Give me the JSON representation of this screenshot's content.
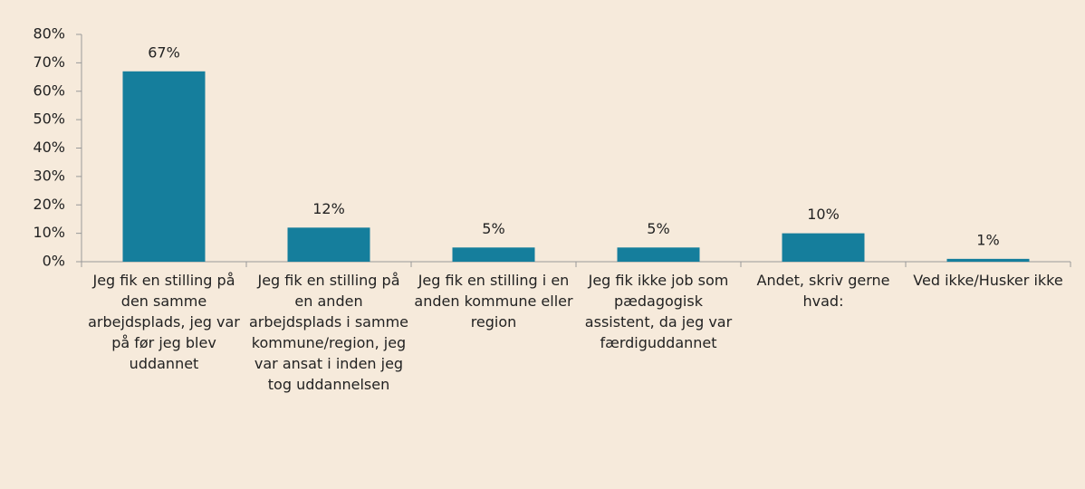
{
  "chart_data": {
    "type": "bar",
    "categories": [
      "Jeg fik en stilling på den samme arbejdsplads, jeg var på før jeg blev uddannet",
      "Jeg fik en stilling på en anden arbejdsplads i samme kommune/region, jeg var ansat i inden jeg tog uddannelsen",
      "Jeg fik en stilling i en anden kommune eller region",
      "Jeg fik ikke job som pædagogisk assistent, da jeg var færdiguddannet",
      "Andet, skriv gerne hvad:",
      "Ved ikke/Husker ikke"
    ],
    "values": [
      67,
      12,
      5,
      5,
      10,
      1
    ],
    "value_labels": [
      "67%",
      "12%",
      "5%",
      "5%",
      "10%",
      "1%"
    ],
    "color": "#157e9c",
    "ylim": [
      0,
      80
    ],
    "yticks": [
      {
        "value": 0,
        "label": "0%"
      },
      {
        "value": 10,
        "label": "10%"
      },
      {
        "value": 20,
        "label": "20%"
      },
      {
        "value": 30,
        "label": "30%"
      },
      {
        "value": 40,
        "label": "40%"
      },
      {
        "value": 50,
        "label": "50%"
      },
      {
        "value": 60,
        "label": "60%"
      },
      {
        "value": 70,
        "label": "70%"
      },
      {
        "value": 80,
        "label": "80%"
      }
    ]
  }
}
